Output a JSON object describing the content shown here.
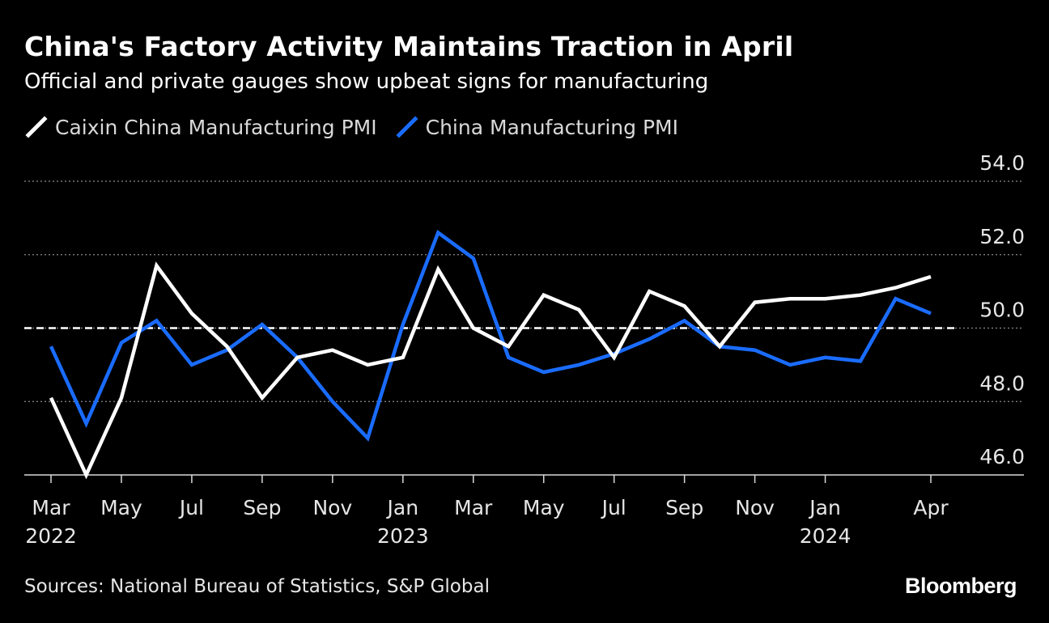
{
  "header": {
    "title": "China's Factory Activity Maintains Traction in April",
    "subtitle": "Official and private gauges show upbeat signs for manufacturing"
  },
  "footer": {
    "source": "Sources: National Bureau of Statistics, S&P Global",
    "brand": "Bloomberg"
  },
  "colors": {
    "background": "#000000",
    "caixin": "#ffffff",
    "official": "#1a6cff",
    "grid": "#8c8c8c",
    "reference": "#ffffff"
  },
  "chart_data": {
    "type": "line",
    "title": "China's Factory Activity Maintains Traction in April",
    "subtitle": "Official and private gauges show upbeat signs for manufacturing",
    "xlabel": "",
    "ylabel": "",
    "ylim": [
      46.0,
      54.0
    ],
    "y_ticks": [
      "46.0",
      "48.0",
      "50.0",
      "52.0",
      "54.0"
    ],
    "y_tick_values": [
      46,
      48,
      50,
      52,
      54
    ],
    "reference_line": 50.0,
    "x": [
      "2022-03",
      "2022-04",
      "2022-05",
      "2022-06",
      "2022-07",
      "2022-08",
      "2022-09",
      "2022-10",
      "2022-11",
      "2022-12",
      "2023-01",
      "2023-02",
      "2023-03",
      "2023-04",
      "2023-05",
      "2023-06",
      "2023-07",
      "2023-08",
      "2023-09",
      "2023-10",
      "2023-11",
      "2023-12",
      "2024-01",
      "2024-02",
      "2024-03",
      "2024-04"
    ],
    "x_tick_labels": [
      {
        "index": 0,
        "month": "Mar",
        "year": "2022"
      },
      {
        "index": 2,
        "month": "May",
        "year": ""
      },
      {
        "index": 4,
        "month": "Jul",
        "year": ""
      },
      {
        "index": 6,
        "month": "Sep",
        "year": ""
      },
      {
        "index": 8,
        "month": "Nov",
        "year": ""
      },
      {
        "index": 10,
        "month": "Jan",
        "year": "2023"
      },
      {
        "index": 12,
        "month": "Mar",
        "year": ""
      },
      {
        "index": 14,
        "month": "May",
        "year": ""
      },
      {
        "index": 16,
        "month": "Jul",
        "year": ""
      },
      {
        "index": 18,
        "month": "Sep",
        "year": ""
      },
      {
        "index": 20,
        "month": "Nov",
        "year": ""
      },
      {
        "index": 22,
        "month": "Jan",
        "year": "2024"
      },
      {
        "index": 25,
        "month": "Apr",
        "year": ""
      }
    ],
    "legend_position": "top-left",
    "series": [
      {
        "name": "Caixin China Manufacturing PMI",
        "color": "#ffffff",
        "values": [
          48.1,
          46.0,
          48.1,
          51.7,
          50.4,
          49.5,
          48.1,
          49.2,
          49.4,
          49.0,
          49.2,
          51.6,
          50.0,
          49.5,
          50.9,
          50.5,
          49.2,
          51.0,
          50.6,
          49.5,
          50.7,
          50.8,
          50.8,
          50.9,
          51.1,
          51.4
        ]
      },
      {
        "name": "China Manufacturing PMI",
        "color": "#1a6cff",
        "values": [
          49.5,
          47.4,
          49.6,
          50.2,
          49.0,
          49.4,
          50.1,
          49.2,
          48.0,
          47.0,
          50.1,
          52.6,
          51.9,
          49.2,
          48.8,
          49.0,
          49.3,
          49.7,
          50.2,
          49.5,
          49.4,
          49.0,
          49.2,
          49.1,
          50.8,
          50.4
        ]
      }
    ]
  }
}
